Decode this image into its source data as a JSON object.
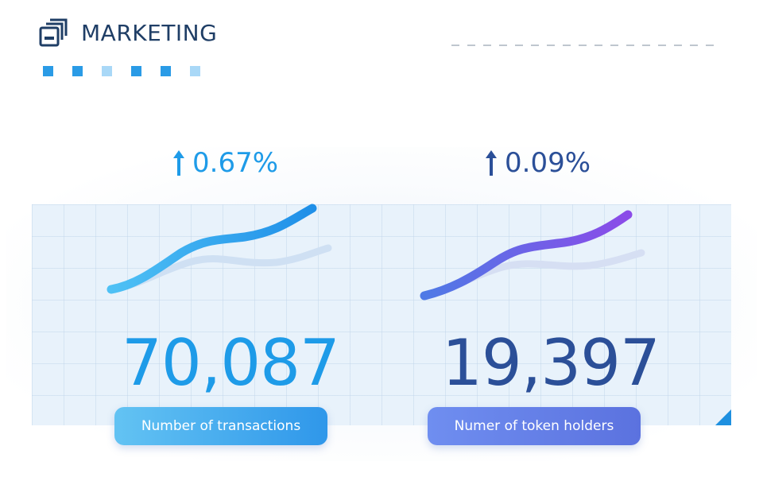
{
  "header": {
    "title": "MARKETING",
    "icon": "stacked-windows-icon"
  },
  "decor": {
    "squares": [
      "#2a9be6",
      "#2a9be6",
      "#a9d8f7",
      "#2a9be6",
      "#2a9be6",
      "#a9d8f7"
    ]
  },
  "cards": [
    {
      "growth": "0.67%",
      "growth_direction": "up",
      "value": "70,087",
      "label": "Number of  transactions",
      "accent": "#1e9be8",
      "label_gradient": [
        "#63c3f3",
        "#2f97ea"
      ],
      "line_gradient": [
        "#4fc1f5",
        "#1f8fe8"
      ],
      "icon": "arrow-up-icon"
    },
    {
      "growth": "0.09%",
      "growth_direction": "up",
      "value": "19,397",
      "label": "Numer of token holders",
      "accent": "#2b4f98",
      "label_gradient": [
        "#6f8ef0",
        "#5b72df"
      ],
      "line_gradient": [
        "#4f7ae6",
        "#8b4be8"
      ],
      "icon": "arrow-up-icon"
    }
  ]
}
